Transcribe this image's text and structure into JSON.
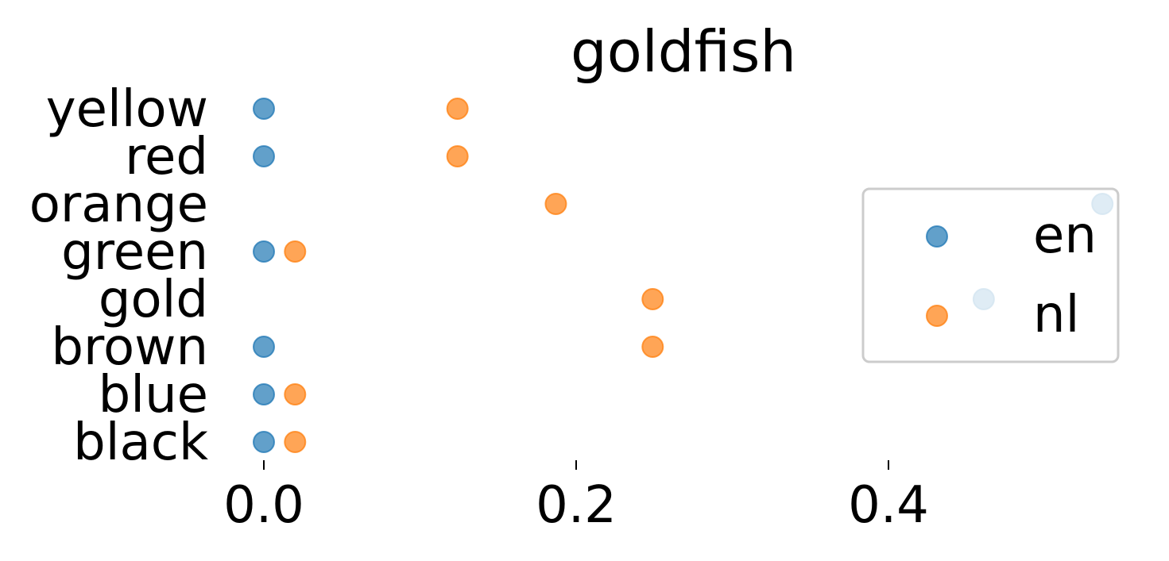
{
  "chart_data": {
    "type": "scatter",
    "title": "goldfish",
    "xlabel": "",
    "ylabel": "",
    "categories": [
      "yellow",
      "red",
      "orange",
      "green",
      "gold",
      "brown",
      "blue",
      "black"
    ],
    "xlim": [
      -0.045,
      0.555
    ],
    "xticks": [
      0.0,
      0.2,
      0.4
    ],
    "xtick_labels": [
      "0.0",
      "0.2",
      "0.4"
    ],
    "grid": false,
    "legend": {
      "placement": "right",
      "entries": [
        "en",
        "nl"
      ]
    },
    "series": [
      {
        "name": "en",
        "color": "#1f77b4",
        "points": [
          {
            "category": "yellow",
            "x": 0.0
          },
          {
            "category": "red",
            "x": 0.0
          },
          {
            "category": "orange",
            "x": 0.537
          },
          {
            "category": "green",
            "x": 0.0
          },
          {
            "category": "gold",
            "x": 0.461
          },
          {
            "category": "brown",
            "x": 0.0
          },
          {
            "category": "blue",
            "x": 0.0
          },
          {
            "category": "black",
            "x": 0.0
          }
        ]
      },
      {
        "name": "nl",
        "color": "#ff7f0e",
        "points": [
          {
            "category": "yellow",
            "x": 0.124
          },
          {
            "category": "red",
            "x": 0.124
          },
          {
            "category": "orange",
            "x": 0.187
          },
          {
            "category": "green",
            "x": 0.02
          },
          {
            "category": "gold",
            "x": 0.249
          },
          {
            "category": "brown",
            "x": 0.249
          },
          {
            "category": "blue",
            "x": 0.02
          },
          {
            "category": "black",
            "x": 0.02
          }
        ]
      }
    ]
  }
}
